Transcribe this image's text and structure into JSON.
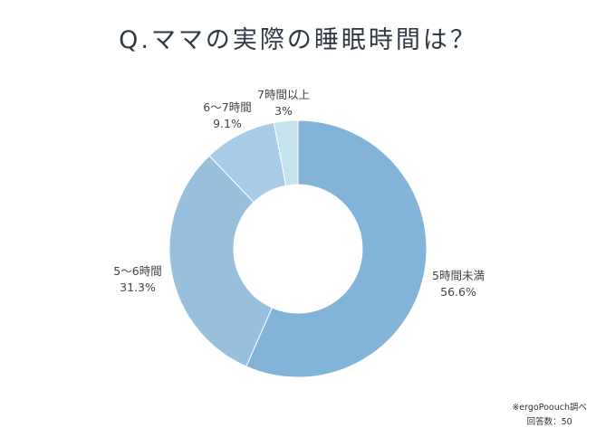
{
  "chart_data": {
    "type": "pie",
    "variant": "donut",
    "title": "Q.ママの実際の睡眠時間は？",
    "start": "top",
    "direction": "clockwise",
    "categories": [
      "5時間未満",
      "5～6時間",
      "6～7時間",
      "7時間以上"
    ],
    "labels": [
      "5時間未満",
      "5～6時間",
      "6～7時間",
      "7時間以上"
    ],
    "values": [
      56.6,
      31.3,
      9.1,
      3
    ],
    "value_labels": [
      "56.6%",
      "31.3%",
      "9.1%",
      "3%"
    ],
    "colors": [
      "#82b3d9",
      "#98bfdc",
      "#a9cce6",
      "#c5e3ec"
    ]
  },
  "notes": {
    "source": "※ergoPoouch調べ",
    "respondents": "回答数：50"
  }
}
